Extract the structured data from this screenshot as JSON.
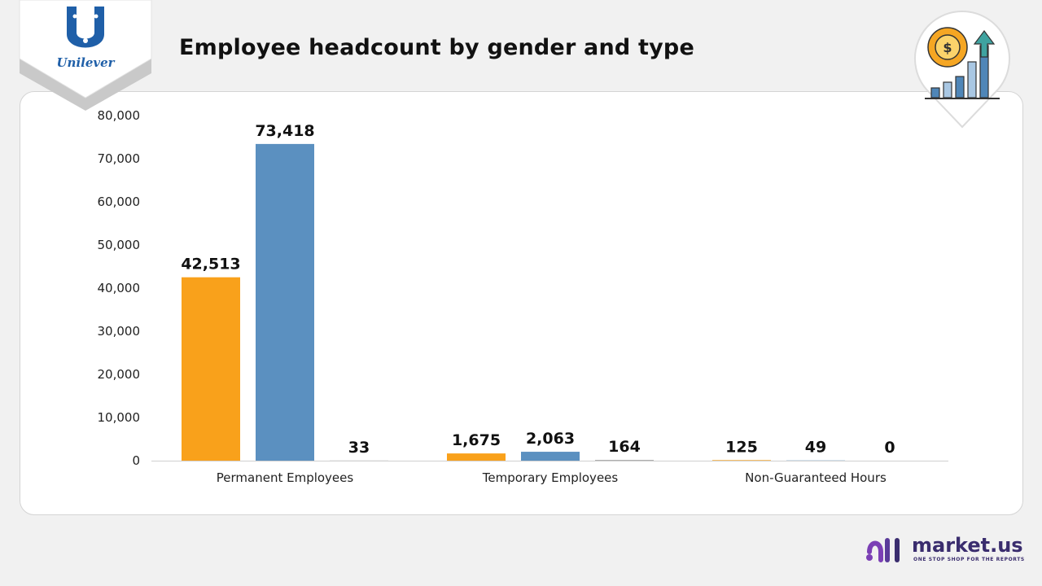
{
  "page": {
    "title": "Employee headcount by gender and type"
  },
  "logo": {
    "name": "Unilever",
    "color": "#1f5fa8"
  },
  "decor": {
    "icon": "gear-dollar-growth-chart-icon"
  },
  "brand": {
    "name": "market.us",
    "tagline": "ONE STOP SHOP FOR THE REPORTS",
    "color": "#3a2d6e",
    "icon": "market-us-logo-icon"
  },
  "chart_data": {
    "type": "bar",
    "categories": [
      "Permanent Employees",
      "Temporary Employees",
      "Non-Guaranteed Hours"
    ],
    "series": [
      {
        "values": [
          42513,
          1675,
          125
        ],
        "labels": [
          "42,513",
          "1,675",
          "125"
        ],
        "color": "#f9a11b"
      },
      {
        "values": [
          73418,
          2063,
          49
        ],
        "labels": [
          "73,418",
          "2,063",
          "49"
        ],
        "color": "#5b90c0"
      },
      {
        "values": [
          33,
          164,
          0
        ],
        "labels": [
          "33",
          "164",
          "0"
        ],
        "color": "#a5a5a5"
      }
    ],
    "yticks": [
      "0",
      "10,000",
      "20,000",
      "30,000",
      "40,000",
      "50,000",
      "60,000",
      "70,000",
      "80,000"
    ],
    "ylim": [
      0,
      80000
    ],
    "grid": false,
    "legend": "none",
    "xlabel": "",
    "ylabel": ""
  }
}
